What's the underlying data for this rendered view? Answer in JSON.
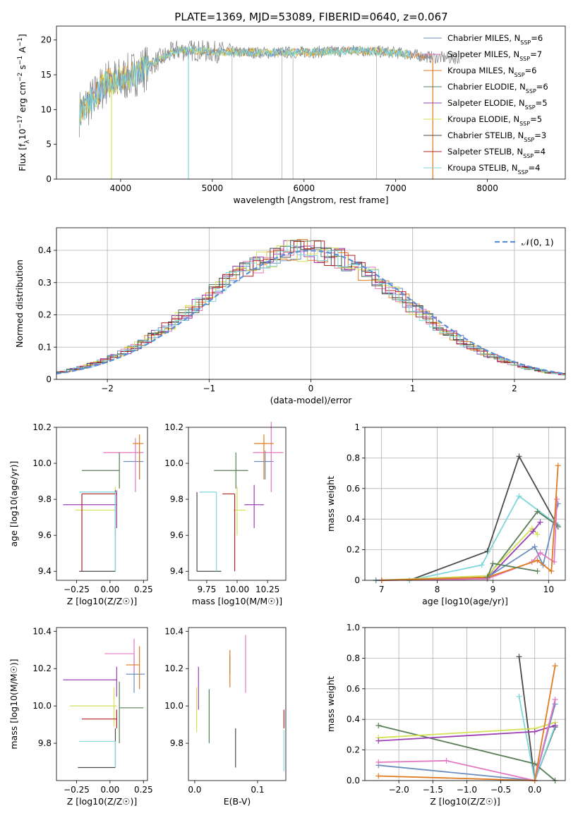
{
  "title": "PLATE=1369, MJD=53089, FIBERID=0640, z=0.067",
  "colors": {
    "Chabrier MILES": "#6c8ebf",
    "Salpeter MILES": "#e377c2",
    "Kroupa MILES": "#e07b1f",
    "Chabrier ELODIE": "#5a7d5a",
    "Salpeter ELODIE": "#9c3fb5",
    "Kroupa ELODIE": "#d4e157",
    "Chabrier STELIB": "#4a4a4a",
    "Salpeter STELIB": "#b22222",
    "Kroupa STELIB": "#7fd7db"
  },
  "legend_labels": [
    {
      "name": "Chabrier MILES",
      "n": "6"
    },
    {
      "name": "Salpeter MILES",
      "n": "7"
    },
    {
      "name": "Kroupa MILES",
      "n": "6"
    },
    {
      "name": "Chabrier ELODIE",
      "n": "6"
    },
    {
      "name": "Salpeter ELODIE",
      "n": "5"
    },
    {
      "name": "Kroupa ELODIE",
      "n": "5"
    },
    {
      "name": "Chabrier STELIB",
      "n": "3"
    },
    {
      "name": "Salpeter STELIB",
      "n": "4"
    },
    {
      "name": "Kroupa STELIB",
      "n": "4"
    }
  ],
  "chart_data": [
    {
      "type": "line",
      "id": "spectrum",
      "xlabel": "wavelength [Angstrom, rest frame]",
      "ylabel": "Flux [f_λ 10^-17 erg cm^-2 s^-1 A^-1]",
      "xlim": [
        3300,
        8850
      ],
      "ylim": [
        0,
        22
      ],
      "xticks": [
        4000,
        5000,
        6000,
        7000,
        8000
      ],
      "yticks": [
        0,
        5,
        10,
        15,
        20
      ],
      "legend_position": "upper right",
      "continuum": {
        "x": [
          3550,
          3700,
          3850,
          4000,
          4200,
          4400,
          4600,
          4800,
          5000,
          5400,
          5800,
          6200,
          6600,
          7000,
          7400,
          7800,
          8300
        ],
        "y": [
          9.5,
          11.5,
          14.0,
          14.2,
          15.5,
          17.0,
          18.5,
          18.5,
          18.3,
          18.2,
          18.2,
          18.3,
          18.5,
          18.2,
          17.5,
          17.3,
          16.5
        ]
      },
      "absorption_dips": [
        {
          "x": 3900,
          "depth": 0
        },
        {
          "x": 4740,
          "depth": 0
        },
        {
          "x": 5215,
          "depth": 0
        },
        {
          "x": 5760,
          "depth": 0
        },
        {
          "x": 5880,
          "depth": 0
        },
        {
          "x": 6790,
          "depth": 0
        },
        {
          "x": 7405,
          "depth": 0
        }
      ]
    },
    {
      "type": "line",
      "id": "residuals",
      "xlabel": "(data-model)/error",
      "ylabel": "Normed distribution",
      "xlim": [
        -2.5,
        2.5
      ],
      "ylim": [
        0,
        0.47
      ],
      "xticks": [
        -2,
        -1,
        0,
        1,
        2
      ],
      "yticks": [
        0.0,
        0.1,
        0.2,
        0.3,
        0.4
      ],
      "grid": true,
      "legend_position": "upper right",
      "legend_label": "𝒩(0, 1)",
      "gaussian": {
        "mean": 0,
        "sigma": 1
      }
    },
    {
      "type": "scatter",
      "id": "age-vs-Z",
      "xlabel": "Z [log10(Z/Z☉)]",
      "ylabel": "age [log10(age/yr)]",
      "xlim": [
        -0.4,
        0.28
      ],
      "ylim": [
        9.35,
        10.2
      ],
      "xticks": [
        -0.25,
        0.0,
        0.25
      ],
      "xticklabels": [
        "−0.25",
        "0.00",
        "0.25"
      ],
      "yticks": [
        9.4,
        9.6,
        9.8,
        10.0,
        10.2
      ],
      "yticklabels": [
        "9.4",
        "9.6",
        "9.8",
        "10.0",
        "10.2"
      ],
      "points": [
        {
          "model": "Chabrier MILES",
          "x": 0.22,
          "y": 10.01,
          "xerr": [
            0.12,
            0.03
          ],
          "yerr": [
            0.1,
            0.06
          ]
        },
        {
          "model": "Salpeter MILES",
          "x": 0.19,
          "y": 10.06,
          "xerr": [
            0.24,
            0.06
          ],
          "yerr": [
            0.22,
            0.08
          ]
        },
        {
          "model": "Kroupa MILES",
          "x": 0.22,
          "y": 10.11,
          "xerr": [
            0.05,
            0.03
          ],
          "yerr": [
            0.2,
            0.05
          ]
        },
        {
          "model": "Chabrier ELODIE",
          "x": 0.07,
          "y": 9.96,
          "xerr": [
            0.28,
            0.0
          ],
          "yerr": [
            0.1,
            0.1
          ]
        },
        {
          "model": "Salpeter ELODIE",
          "x": 0.05,
          "y": 9.77,
          "xerr": [
            0.4,
            0.0
          ],
          "yerr": [
            0.13,
            0.08
          ]
        },
        {
          "model": "Kroupa ELODIE",
          "x": 0.04,
          "y": 9.74,
          "xerr": [
            0.3,
            0.0
          ],
          "yerr": [
            0.14,
            0.13
          ]
        },
        {
          "model": "Chabrier STELIB",
          "x": 0.04,
          "y": 9.4,
          "xerr": [
            0.27,
            0.0
          ],
          "yerr": [
            0.0,
            0.45
          ]
        },
        {
          "model": "Salpeter STELIB",
          "x": -0.21,
          "y": 9.83,
          "xerr": [
            0.0,
            0.26
          ],
          "yerr": [
            0.43,
            0.0
          ]
        },
        {
          "model": "Kroupa STELIB",
          "x": 0.04,
          "y": 9.84,
          "xerr": [
            0.27,
            0.0
          ],
          "yerr": [
            0.44,
            0.0
          ]
        }
      ]
    },
    {
      "type": "scatter",
      "id": "age-vs-mass",
      "xlabel": "mass [log10(M/M☉)]",
      "ylabel": "",
      "xlim": [
        9.6,
        10.4
      ],
      "ylim": [
        9.35,
        10.2
      ],
      "xticks": [
        9.75,
        10.0,
        10.25
      ],
      "xticklabels": [
        "9.75",
        "10.00",
        "10.25"
      ],
      "yticks": [
        9.4,
        9.6,
        9.8,
        10.0,
        10.2
      ],
      "yticklabels": [
        "9.4",
        "9.6",
        "9.8",
        "10.0",
        "10.2"
      ],
      "points": [
        {
          "model": "Chabrier MILES",
          "x": 10.23,
          "y": 10.01,
          "xerr": [
            0.09,
            0.07
          ],
          "yerr": [
            0.1,
            0.06
          ]
        },
        {
          "model": "Salpeter MILES",
          "x": 10.28,
          "y": 10.06,
          "xerr": [
            0.15,
            0.1
          ],
          "yerr": [
            0.22,
            0.17
          ]
        },
        {
          "model": "Kroupa MILES",
          "x": 10.22,
          "y": 10.11,
          "xerr": [
            0.08,
            0.08
          ],
          "yerr": [
            0.2,
            0.05
          ]
        },
        {
          "model": "Chabrier ELODIE",
          "x": 9.99,
          "y": 9.96,
          "xerr": [
            0.18,
            0.1
          ],
          "yerr": [
            0.1,
            0.1
          ]
        },
        {
          "model": "Salpeter ELODIE",
          "x": 10.14,
          "y": 9.77,
          "xerr": [
            0.08,
            0.08
          ],
          "yerr": [
            0.13,
            0.11
          ]
        },
        {
          "model": "Kroupa ELODIE",
          "x": 10.0,
          "y": 9.74,
          "xerr": [
            0.03,
            0.07
          ],
          "yerr": [
            0.14,
            0.13
          ]
        },
        {
          "model": "Chabrier STELIB",
          "x": 9.67,
          "y": 9.4,
          "xerr": [
            0.0,
            0.2
          ],
          "yerr": [
            0.0,
            0.44
          ]
        },
        {
          "model": "Salpeter STELIB",
          "x": 9.98,
          "y": 9.83,
          "xerr": [
            0.1,
            0.0
          ],
          "yerr": [
            0.43,
            0.0
          ]
        },
        {
          "model": "Kroupa STELIB",
          "x": 9.83,
          "y": 9.84,
          "xerr": [
            0.14,
            0.0
          ],
          "yerr": [
            0.44,
            0.0
          ]
        }
      ]
    },
    {
      "type": "line",
      "id": "weight-vs-age",
      "xlabel": "age [log10(age/yr)]",
      "ylabel": "mass weight",
      "xlim": [
        6.7,
        10.3
      ],
      "ylim": [
        0,
        1.0
      ],
      "xticks": [
        7,
        8,
        9,
        10
      ],
      "yticks": [
        0.0,
        0.2,
        0.4,
        0.6,
        0.8,
        1.0
      ],
      "grid": true,
      "series": [
        {
          "model": "Chabrier STELIB",
          "x": [
            7.5,
            8.9,
            9.47,
            10.17
          ],
          "y": [
            0.0,
            0.19,
            0.81,
            0.35
          ]
        },
        {
          "model": "Kroupa STELIB",
          "x": [
            7.5,
            8.8,
            9.47,
            10.17
          ],
          "y": [
            0.0,
            0.1,
            0.55,
            0.36
          ]
        },
        {
          "model": "Chabrier ELODIE",
          "x": [
            6.9,
            8.9,
            9.8,
            10.15
          ],
          "y": [
            0.0,
            0.02,
            0.45,
            0.36
          ]
        },
        {
          "model": "Kroupa ELODIE",
          "x": [
            6.9,
            8.9,
            9.7,
            9.8
          ],
          "y": [
            0.0,
            0.03,
            0.34,
            0.3
          ]
        },
        {
          "model": "Salpeter ELODIE",
          "x": [
            7.0,
            8.9,
            9.72,
            9.85
          ],
          "y": [
            0.0,
            0.01,
            0.32,
            0.38
          ]
        },
        {
          "model": "Chabrier MILES",
          "x": [
            6.9,
            8.9,
            9.75,
            9.9,
            10.17
          ],
          "y": [
            0.0,
            0.02,
            0.22,
            0.1,
            0.5
          ]
        },
        {
          "model": "Salpeter MILES",
          "x": [
            7.0,
            8.9,
            9.7,
            9.85,
            10.1,
            10.15
          ],
          "y": [
            0.0,
            0.01,
            0.12,
            0.18,
            0.12,
            0.53
          ]
        },
        {
          "model": "Kroupa MILES",
          "x": [
            7.0,
            8.9,
            9.8,
            10.05,
            10.17
          ],
          "y": [
            0.0,
            0.02,
            0.13,
            0.06,
            0.75
          ]
        },
        {
          "model": "Chabrier ELODIE",
          "x": [
            8.9,
            9.0,
            9.8
          ],
          "y": [
            0.02,
            0.11,
            0.06
          ]
        }
      ]
    },
    {
      "type": "scatter",
      "id": "mass-vs-Z",
      "xlabel": "Z [log10(Z/Z☉)]",
      "ylabel": "mass [log10(M/M☉)]",
      "xlim": [
        -0.4,
        0.28
      ],
      "ylim": [
        9.6,
        10.42
      ],
      "xticks": [
        -0.25,
        0.0,
        0.25
      ],
      "xticklabels": [
        "−0.25",
        "0.00",
        "0.25"
      ],
      "yticks": [
        9.8,
        10.0,
        10.2,
        10.4
      ],
      "yticklabels": [
        "9.8",
        "10.0",
        "10.2",
        "10.4"
      ],
      "points": [
        {
          "model": "Chabrier MILES",
          "x": 0.18,
          "y": 10.17,
          "xerr": [
            0.06,
            0.08
          ],
          "yerr": [
            0.1,
            0.1
          ]
        },
        {
          "model": "Salpeter MILES",
          "x": 0.18,
          "y": 10.28,
          "xerr": [
            0.22,
            0.0
          ],
          "yerr": [
            0.1,
            0.08
          ]
        },
        {
          "model": "Kroupa MILES",
          "x": 0.22,
          "y": 10.22,
          "xerr": [
            0.1,
            0.0
          ],
          "yerr": [
            0.13,
            0.1
          ]
        },
        {
          "model": "Chabrier ELODIE",
          "x": 0.07,
          "y": 9.99,
          "xerr": [
            0.0,
            0.18
          ],
          "yerr": [
            0.19,
            0.14
          ]
        },
        {
          "model": "Salpeter ELODIE",
          "x": 0.05,
          "y": 10.14,
          "xerr": [
            0.4,
            0.0
          ],
          "yerr": [
            0.09,
            0.07
          ]
        },
        {
          "model": "Kroupa ELODIE",
          "x": 0.03,
          "y": 10.0,
          "xerr": [
            0.33,
            0.02
          ],
          "yerr": [
            0.11,
            0.1
          ]
        },
        {
          "model": "Chabrier STELIB",
          "x": 0.04,
          "y": 9.67,
          "xerr": [
            0.28,
            0.0
          ],
          "yerr": [
            0.0,
            0.21
          ]
        },
        {
          "model": "Salpeter STELIB",
          "x": 0.05,
          "y": 9.93,
          "xerr": [
            0.26,
            0.0
          ],
          "yerr": [
            0.05,
            0.05
          ]
        },
        {
          "model": "Kroupa STELIB",
          "x": 0.04,
          "y": 9.81,
          "xerr": [
            0.27,
            0.0
          ],
          "yerr": [
            0.14,
            0.0
          ]
        }
      ]
    },
    {
      "type": "scatter",
      "id": "mass-vs-EBV",
      "xlabel": "E(B-V)",
      "ylabel": "",
      "xlim": [
        -0.01,
        0.145
      ],
      "ylim": [
        9.6,
        10.42
      ],
      "xticks": [
        0.0,
        0.1
      ],
      "xticklabels": [
        "0.0",
        "0.1"
      ],
      "yticks": [
        9.8,
        10.0,
        10.2,
        10.4
      ],
      "yticklabels": [
        "9.8",
        "10.0",
        "10.2",
        "10.4"
      ],
      "points": [
        {
          "model": "Chabrier MILES",
          "x": 0.056,
          "y": 10.17,
          "xerr": [
            0,
            0
          ],
          "yerr": [
            0.0,
            0.1
          ]
        },
        {
          "model": "Salpeter MILES",
          "x": 0.081,
          "y": 10.28,
          "xerr": [
            0,
            0
          ],
          "yerr": [
            0.21,
            0.1
          ]
        },
        {
          "model": "Kroupa MILES",
          "x": 0.056,
          "y": 10.22,
          "xerr": [
            0,
            0
          ],
          "yerr": [
            0.12,
            0.08
          ]
        },
        {
          "model": "Chabrier ELODIE",
          "x": 0.023,
          "y": 9.99,
          "xerr": [
            0,
            0
          ],
          "yerr": [
            0.19,
            0.1
          ]
        },
        {
          "model": "Salpeter ELODIE",
          "x": 0.006,
          "y": 10.14,
          "xerr": [
            0,
            0
          ],
          "yerr": [
            0.16,
            0.07
          ]
        },
        {
          "model": "Kroupa ELODIE",
          "x": 0.003,
          "y": 10.0,
          "xerr": [
            0,
            0
          ],
          "yerr": [
            0.14,
            0.1
          ]
        },
        {
          "model": "Chabrier STELIB",
          "x": 0.065,
          "y": 9.67,
          "xerr": [
            0,
            0
          ],
          "yerr": [
            0.0,
            0.21
          ]
        },
        {
          "model": "Salpeter STELIB",
          "x": 0.142,
          "y": 9.93,
          "xerr": [
            0,
            0
          ],
          "yerr": [
            0.05,
            0.05
          ]
        },
        {
          "model": "Kroupa STELIB",
          "x": 0.142,
          "y": 9.75,
          "xerr": [
            0,
            0
          ],
          "yerr": [
            0.1,
            0.12
          ]
        }
      ]
    },
    {
      "type": "line",
      "id": "weight-vs-Z",
      "xlabel": "Z [log10(Z/Z☉)]",
      "ylabel": "mass weight",
      "xlim": [
        -2.5,
        0.45
      ],
      "ylim": [
        0,
        1.0
      ],
      "xticks": [
        -2.0,
        -1.5,
        -1.0,
        -0.5,
        0.0
      ],
      "xticklabels": [
        "−2.0",
        "−1.5",
        "−1.0",
        "−0.5",
        "0.0"
      ],
      "yticks": [
        0.0,
        0.2,
        0.4,
        0.6,
        0.8,
        1.0
      ],
      "yticklabels": [
        "0.0",
        "0.2",
        "0.4",
        "0.6",
        "0.8",
        "1.0"
      ],
      "grid": true,
      "series": [
        {
          "model": "Chabrier STELIB",
          "x": [
            -0.23,
            0.0,
            0.3
          ],
          "y": [
            0.81,
            0.0,
            0.35
          ]
        },
        {
          "model": "Kroupa STELIB",
          "x": [
            -0.23,
            0.0,
            0.3
          ],
          "y": [
            0.55,
            0.0,
            0.36
          ]
        },
        {
          "model": "Chabrier ELODIE",
          "x": [
            -2.3,
            0.0,
            0.3
          ],
          "y": [
            0.36,
            0.11,
            0.0
          ]
        },
        {
          "model": "Kroupa ELODIE",
          "x": [
            -2.3,
            0.0,
            0.3
          ],
          "y": [
            0.28,
            0.34,
            0.38
          ]
        },
        {
          "model": "Salpeter ELODIE",
          "x": [
            -2.3,
            0.0,
            0.3
          ],
          "y": [
            0.26,
            0.32,
            0.36
          ]
        },
        {
          "model": "Chabrier MILES",
          "x": [
            -2.3,
            0.0,
            0.3
          ],
          "y": [
            0.1,
            0.0,
            0.5
          ]
        },
        {
          "model": "Salpeter MILES",
          "x": [
            -2.3,
            -1.3,
            0.0,
            0.3
          ],
          "y": [
            0.12,
            0.13,
            0.0,
            0.53
          ]
        },
        {
          "model": "Kroupa MILES",
          "x": [
            -2.3,
            0.0,
            0.3
          ],
          "y": [
            0.03,
            0.0,
            0.75
          ]
        }
      ]
    }
  ]
}
